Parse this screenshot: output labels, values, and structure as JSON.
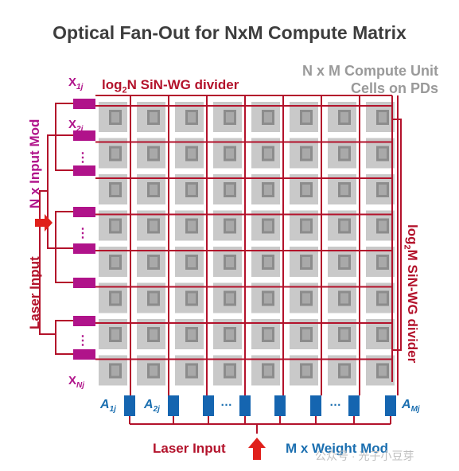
{
  "title": "Optical Fan-Out for NxM Compute Matrix",
  "compute_label_line1": "N x M Compute Unit",
  "compute_label_line2": "Cells on PDs",
  "top_divider_prefix": "log",
  "top_divider_sub": "2",
  "top_divider_suffix": "N SiN-WG divider",
  "right_divider_prefix": "log",
  "right_divider_sub": "2",
  "right_divider_suffix": "M SiN-WG divider",
  "left_vertical_top": "N x Input Mod",
  "left_vertical_bottom": "Laser Input",
  "input_labels": [
    {
      "base": "X",
      "sub": "1j"
    },
    {
      "base": "X",
      "sub": "2j"
    },
    {
      "base": "X",
      "sub": "Nj"
    }
  ],
  "weight_labels": [
    {
      "base": "A",
      "sub": "1j"
    },
    {
      "base": "A",
      "sub": "2j"
    },
    {
      "base": "A",
      "sub": "Mj"
    }
  ],
  "dots_vertical": "⋮",
  "dots_horizontal": "…",
  "bottom_laser": "Laser Input",
  "bottom_weight_mod": "M x Weight Mod",
  "watermark": "公众号 · 光子小豆芽",
  "grid_rows": 8,
  "grid_cols": 8,
  "colors": {
    "red": "#b3122b",
    "magenta": "#b0138a",
    "blue": "#1565b0",
    "gray_light": "#c9c9c9",
    "gray_dark": "#8c8c8c",
    "arrow": "#e0201b"
  }
}
